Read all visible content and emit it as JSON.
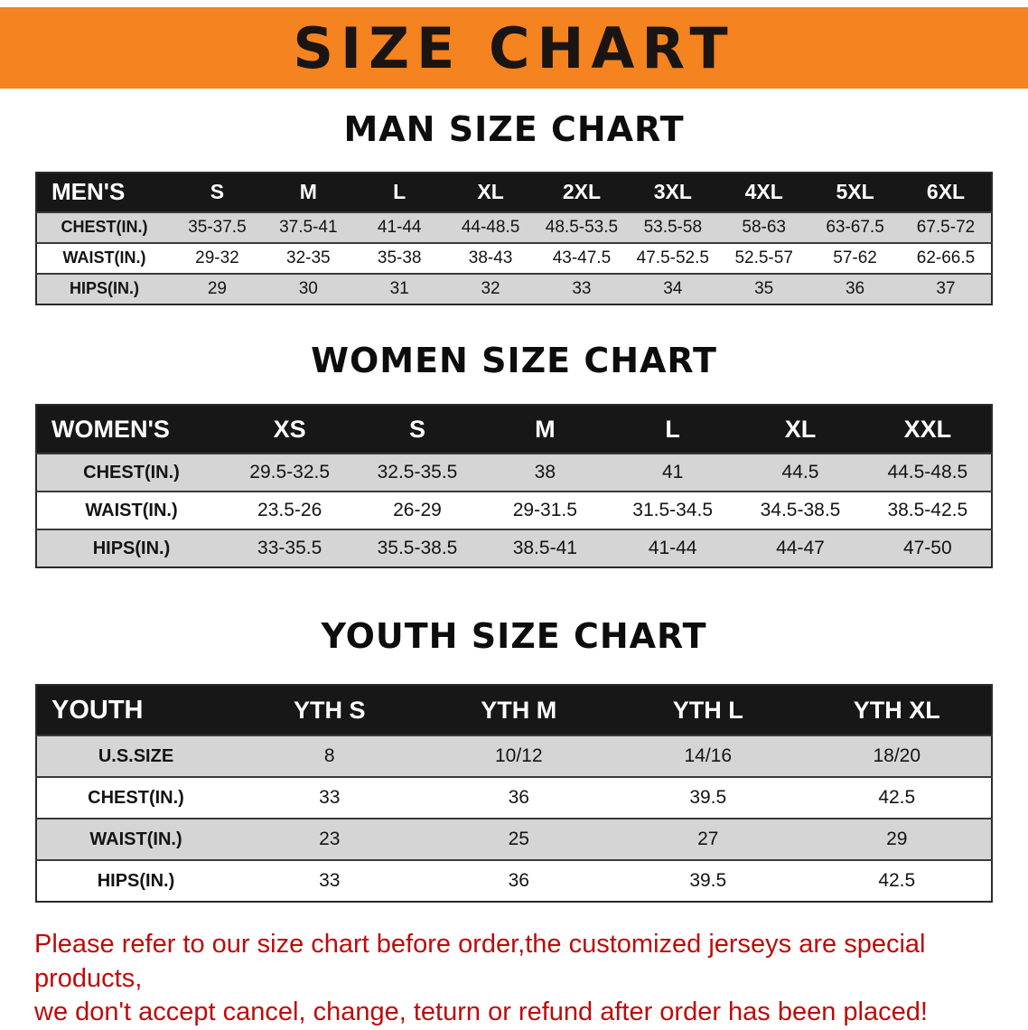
{
  "banner": {
    "title": "SIZE CHART"
  },
  "sections": [
    {
      "heading": "MAN SIZE CHART",
      "table": {
        "header": [
          "MEN'S",
          "S",
          "M",
          "L",
          "XL",
          "2XL",
          "3XL",
          "4XL",
          "5XL",
          "6XL"
        ],
        "rows": [
          [
            "CHEST(IN.)",
            "35-37.5",
            "37.5-41",
            "41-44",
            "44-48.5",
            "48.5-53.5",
            "53.5-58",
            "58-63",
            "63-67.5",
            "67.5-72"
          ],
          [
            "WAIST(IN.)",
            "29-32",
            "32-35",
            "35-38",
            "38-43",
            "43-47.5",
            "47.5-52.5",
            "52.5-57",
            "57-62",
            "62-66.5"
          ],
          [
            "HIPS(IN.)",
            "29",
            "30",
            "31",
            "32",
            "33",
            "34",
            "35",
            "36",
            "37"
          ]
        ]
      }
    },
    {
      "heading": "WOMEN SIZE CHART",
      "table": {
        "header": [
          "WOMEN'S",
          "XS",
          "S",
          "M",
          "L",
          "XL",
          "XXL"
        ],
        "rows": [
          [
            "CHEST(IN.)",
            "29.5-32.5",
            "32.5-35.5",
            "38",
            "41",
            "44.5",
            "44.5-48.5"
          ],
          [
            "WAIST(IN.)",
            "23.5-26",
            "26-29",
            "29-31.5",
            "31.5-34.5",
            "34.5-38.5",
            "38.5-42.5"
          ],
          [
            "HIPS(IN.)",
            "33-35.5",
            "35.5-38.5",
            "38.5-41",
            "41-44",
            "44-47",
            "47-50"
          ]
        ]
      }
    },
    {
      "heading": "YOUTH SIZE CHART",
      "table": {
        "header": [
          "YOUTH",
          "YTH S",
          "YTH M",
          "YTH L",
          "YTH XL"
        ],
        "rows": [
          [
            "U.S.SIZE",
            "8",
            "10/12",
            "14/16",
            "18/20"
          ],
          [
            "CHEST(IN.)",
            "33",
            "36",
            "39.5",
            "42.5"
          ],
          [
            "WAIST(IN.)",
            "23",
            "25",
            "27",
            "29"
          ],
          [
            "HIPS(IN.)",
            "33",
            "36",
            "39.5",
            "42.5"
          ]
        ]
      }
    }
  ],
  "disclaimer": {
    "line1": "Please refer to our size chart before order,the customized jerseys are special products,",
    "line2": "we don't accept cancel, change, teturn or refund after order has been placed!"
  },
  "colors": {
    "banner_bg": "#f5831f",
    "banner_text": "#1a1512",
    "header_bg": "#171717",
    "header_text": "#ffffff",
    "stripe": "#d5d5d5",
    "border": "#2a2a2a",
    "disclaimer": "#bd0b0b"
  }
}
